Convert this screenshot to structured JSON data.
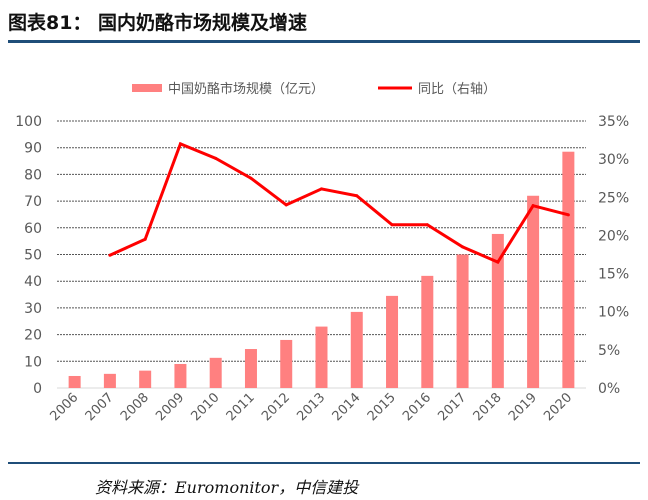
{
  "header": {
    "title": "图表81：  国内奶酪市场规模及增速"
  },
  "footer": {
    "source": "资料来源：Euromonitor，中信建投"
  },
  "chart_data": {
    "type": "bar+line",
    "categories": [
      "2006",
      "2007",
      "2008",
      "2009",
      "2010",
      "2011",
      "2012",
      "2013",
      "2014",
      "2015",
      "2016",
      "2017",
      "2018",
      "2019",
      "2020"
    ],
    "series": [
      {
        "name": "中国奶酪市场规模（亿元）",
        "type": "bar",
        "axis": "left",
        "color": "#ff8080",
        "values": [
          4.5,
          5.3,
          6.5,
          9,
          11.3,
          14.6,
          18,
          23,
          28.5,
          34.5,
          42,
          50,
          57.7,
          72,
          88.5
        ]
      },
      {
        "name": "同比（右轴）",
        "type": "line",
        "axis": "right",
        "color": "#ff0000",
        "values": [
          null,
          17.4,
          19.5,
          32,
          30.1,
          27.5,
          24,
          26.1,
          25.2,
          21.4,
          21.4,
          18.5,
          16.5,
          23.9,
          22.7
        ]
      }
    ],
    "ylim": [
      0,
      100
    ],
    "yticks": [
      "0",
      "10",
      "20",
      "30",
      "40",
      "50",
      "60",
      "70",
      "80",
      "90",
      "100"
    ],
    "y2lim": [
      0,
      35
    ],
    "y2ticks": [
      "0%",
      "5%",
      "10%",
      "15%",
      "20%",
      "25%",
      "30%",
      "35%"
    ],
    "grid": true,
    "legend": "top"
  }
}
